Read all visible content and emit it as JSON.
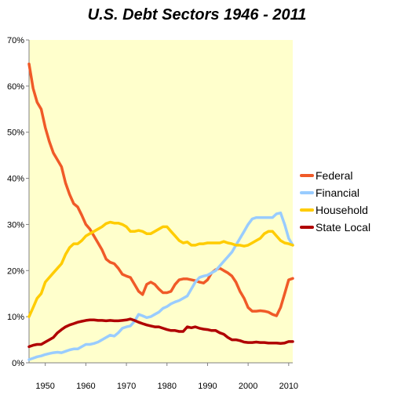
{
  "chart_data": {
    "type": "line",
    "title": "U.S. Debt Sectors 1946 - 2011",
    "xlabel": "",
    "ylabel": "",
    "xlim": [
      1946,
      2011
    ],
    "ylim": [
      0,
      70
    ],
    "y_unit": "%",
    "grid": false,
    "legend_placement": "right",
    "plot_background": "#FFFFCC",
    "x_ticks": [
      1950,
      1960,
      1970,
      1980,
      1990,
      2000,
      2010
    ],
    "x_tick_labels": [
      "1950",
      "1960",
      "1970",
      "1980",
      "1990",
      "2000",
      "2010"
    ],
    "y_ticks": [
      0,
      10,
      20,
      30,
      40,
      50,
      60,
      70
    ],
    "y_tick_labels": [
      "0%",
      "10%",
      "20%",
      "30%",
      "40%",
      "50%",
      "60%",
      "70%"
    ],
    "series": [
      {
        "name": "Federal",
        "color": "#F05A28",
        "x": [
          1946,
          1947,
          1948,
          1949,
          1950,
          1951,
          1952,
          1953,
          1954,
          1955,
          1956,
          1957,
          1958,
          1959,
          1960,
          1961,
          1962,
          1963,
          1964,
          1965,
          1966,
          1967,
          1968,
          1969,
          1970,
          1971,
          1972,
          1973,
          1974,
          1975,
          1976,
          1977,
          1978,
          1979,
          1980,
          1981,
          1982,
          1983,
          1984,
          1985,
          1986,
          1987,
          1988,
          1989,
          1990,
          1991,
          1992,
          1993,
          1994,
          1995,
          1996,
          1997,
          1998,
          1999,
          2000,
          2001,
          2002,
          2003,
          2004,
          2005,
          2006,
          2007,
          2008,
          2009,
          2010,
          2011
        ],
        "values": [
          64.8,
          59.5,
          56.5,
          55.0,
          51.0,
          48.0,
          45.5,
          44.0,
          42.5,
          39.0,
          36.5,
          34.5,
          33.8,
          32.0,
          30.0,
          29.0,
          27.5,
          26.0,
          24.5,
          22.5,
          21.8,
          21.5,
          20.5,
          19.2,
          18.8,
          18.5,
          17.0,
          15.5,
          14.8,
          17.0,
          17.5,
          17.0,
          16.0,
          15.2,
          15.2,
          15.5,
          17.0,
          18.0,
          18.2,
          18.2,
          18.0,
          17.8,
          17.5,
          17.3,
          18.0,
          19.5,
          20.2,
          20.5,
          20.0,
          19.5,
          18.8,
          17.5,
          15.5,
          14.0,
          12.0,
          11.2,
          11.2,
          11.3,
          11.2,
          11.0,
          10.5,
          10.2,
          12.0,
          15.0,
          18.0,
          18.3
        ]
      },
      {
        "name": "Financial",
        "color": "#99CCFF",
        "x": [
          1946,
          1947,
          1948,
          1949,
          1950,
          1951,
          1952,
          1953,
          1954,
          1955,
          1956,
          1957,
          1958,
          1959,
          1960,
          1961,
          1962,
          1963,
          1964,
          1965,
          1966,
          1967,
          1968,
          1969,
          1970,
          1971,
          1972,
          1973,
          1974,
          1975,
          1976,
          1977,
          1978,
          1979,
          1980,
          1981,
          1982,
          1983,
          1984,
          1985,
          1986,
          1987,
          1988,
          1989,
          1990,
          1991,
          1992,
          1993,
          1994,
          1995,
          1996,
          1997,
          1998,
          1999,
          2000,
          2001,
          2002,
          2003,
          2004,
          2005,
          2006,
          2007,
          2008,
          2009,
          2010,
          2011
        ],
        "values": [
          0.7,
          1.0,
          1.3,
          1.5,
          1.8,
          2.0,
          2.2,
          2.3,
          2.2,
          2.5,
          2.8,
          3.0,
          3.0,
          3.5,
          4.0,
          4.0,
          4.2,
          4.5,
          5.0,
          5.5,
          6.0,
          5.8,
          6.5,
          7.5,
          7.8,
          8.0,
          9.0,
          10.5,
          10.2,
          9.8,
          10.0,
          10.5,
          11.0,
          11.8,
          12.2,
          12.8,
          13.2,
          13.5,
          14.0,
          14.5,
          16.0,
          17.5,
          18.5,
          18.8,
          19.0,
          19.5,
          20.0,
          21.0,
          22.0,
          23.0,
          24.0,
          25.5,
          27.0,
          28.5,
          30.0,
          31.2,
          31.5,
          31.5,
          31.5,
          31.5,
          31.5,
          32.3,
          32.5,
          30.0,
          27.0,
          25.5
        ]
      },
      {
        "name": "Household",
        "color": "#FFCC00",
        "x": [
          1946,
          1947,
          1948,
          1949,
          1950,
          1951,
          1952,
          1953,
          1954,
          1955,
          1956,
          1957,
          1958,
          1959,
          1960,
          1961,
          1962,
          1963,
          1964,
          1965,
          1966,
          1967,
          1968,
          1969,
          1970,
          1971,
          1972,
          1973,
          1974,
          1975,
          1976,
          1977,
          1978,
          1979,
          1980,
          1981,
          1982,
          1983,
          1984,
          1985,
          1986,
          1987,
          1988,
          1989,
          1990,
          1991,
          1992,
          1993,
          1994,
          1995,
          1996,
          1997,
          1998,
          1999,
          2000,
          2001,
          2002,
          2003,
          2004,
          2005,
          2006,
          2007,
          2008,
          2009,
          2010,
          2011
        ],
        "values": [
          10.0,
          12.0,
          14.0,
          15.0,
          17.5,
          18.5,
          19.5,
          20.5,
          21.5,
          23.5,
          25.0,
          25.8,
          25.8,
          26.5,
          27.5,
          28.0,
          28.5,
          29.0,
          29.5,
          30.2,
          30.5,
          30.3,
          30.3,
          30.0,
          29.5,
          28.5,
          28.5,
          28.7,
          28.5,
          28.0,
          28.0,
          28.5,
          29.0,
          29.5,
          29.5,
          28.5,
          27.5,
          26.5,
          26.0,
          26.2,
          25.5,
          25.5,
          25.8,
          25.8,
          26.0,
          26.0,
          26.0,
          26.0,
          26.3,
          26.0,
          25.8,
          25.5,
          25.5,
          25.3,
          25.5,
          26.0,
          26.5,
          27.0,
          28.0,
          28.5,
          28.5,
          27.5,
          26.5,
          26.0,
          25.8,
          25.5
        ]
      },
      {
        "name": "State Local",
        "color": "#B00000",
        "x": [
          1946,
          1947,
          1948,
          1949,
          1950,
          1951,
          1952,
          1953,
          1954,
          1955,
          1956,
          1957,
          1958,
          1959,
          1960,
          1961,
          1962,
          1963,
          1964,
          1965,
          1966,
          1967,
          1968,
          1969,
          1970,
          1971,
          1972,
          1973,
          1974,
          1975,
          1976,
          1977,
          1978,
          1979,
          1980,
          1981,
          1982,
          1983,
          1984,
          1985,
          1986,
          1987,
          1988,
          1989,
          1990,
          1991,
          1992,
          1993,
          1994,
          1995,
          1996,
          1997,
          1998,
          1999,
          2000,
          2001,
          2002,
          2003,
          2004,
          2005,
          2006,
          2007,
          2008,
          2009,
          2010,
          2011
        ],
        "values": [
          3.5,
          3.8,
          4.0,
          4.0,
          4.5,
          5.0,
          5.5,
          6.5,
          7.2,
          7.8,
          8.2,
          8.5,
          8.8,
          9.0,
          9.2,
          9.3,
          9.3,
          9.2,
          9.2,
          9.1,
          9.2,
          9.1,
          9.1,
          9.2,
          9.3,
          9.5,
          9.2,
          8.8,
          8.5,
          8.2,
          8.0,
          7.8,
          7.8,
          7.5,
          7.2,
          7.0,
          7.0,
          6.8,
          6.8,
          7.8,
          7.6,
          7.8,
          7.5,
          7.3,
          7.2,
          7.0,
          7.0,
          6.5,
          6.2,
          5.5,
          5.0,
          5.0,
          4.8,
          4.5,
          4.4,
          4.4,
          4.5,
          4.4,
          4.4,
          4.3,
          4.3,
          4.3,
          4.2,
          4.3,
          4.6,
          4.6
        ]
      }
    ]
  }
}
